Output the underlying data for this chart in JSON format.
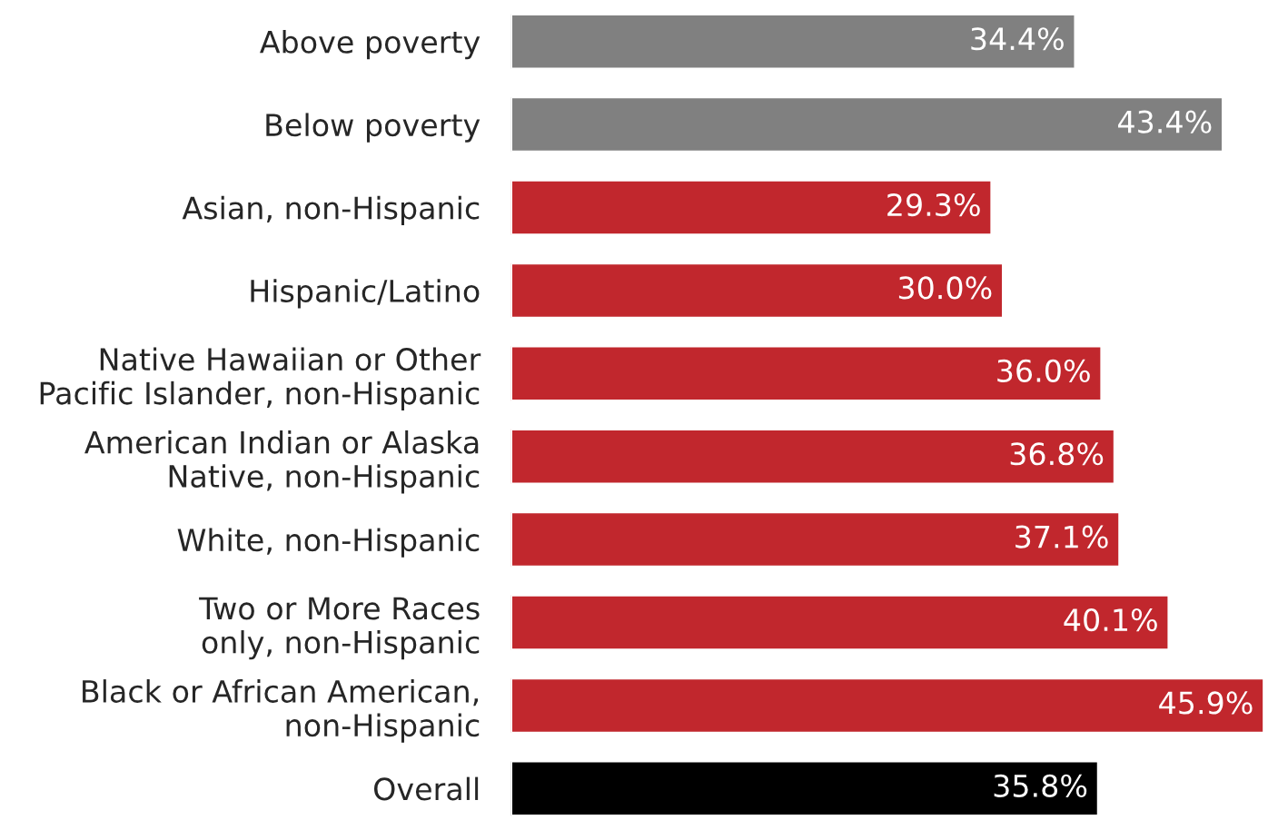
{
  "chart_data": {
    "type": "bar",
    "orientation": "horizontal",
    "categories": [
      "Above poverty",
      "Below poverty",
      "Asian, non-Hispanic",
      "Hispanic/Latino",
      "Native Hawaiian or Other\nPacific Islander, non-Hispanic",
      "American Indian or Alaska\nNative, non-Hispanic",
      "White, non-Hispanic",
      "Two or More Races\nonly, non-Hispanic",
      "Black or African American,\nnon-Hispanic",
      "Overall"
    ],
    "values": [
      34.4,
      43.4,
      29.3,
      30.0,
      36.0,
      36.8,
      37.1,
      40.1,
      45.9,
      35.8
    ],
    "value_labels": [
      "34.4%",
      "43.4%",
      "29.3%",
      "30.0%",
      "36.0%",
      "36.8%",
      "37.1%",
      "40.1%",
      "45.9%",
      "35.8%"
    ],
    "colors": [
      "#808080",
      "#808080",
      "#c1272d",
      "#c1272d",
      "#c1272d",
      "#c1272d",
      "#c1272d",
      "#c1272d",
      "#c1272d",
      "#000000"
    ],
    "grid": false,
    "legend": false
  }
}
